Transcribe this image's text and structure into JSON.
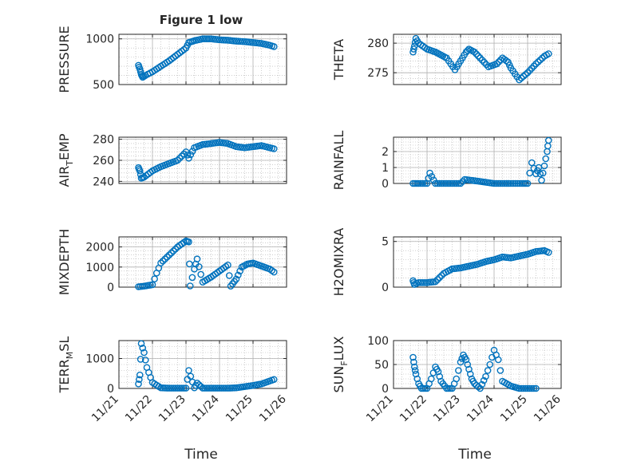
{
  "colors": {
    "marker": "#0072BD",
    "axis": "#262626",
    "grid": "#b0b0b0",
    "background": "#ffffff"
  },
  "chart_data": [
    {
      "type": "scatter",
      "title": "Figure 1 low",
      "ylabel": "PRESSURE",
      "yticks": [
        500,
        1000
      ],
      "ylim": [
        500,
        1050
      ],
      "x": [
        "11/21 14:00",
        "11/21 15:00",
        "11/21 16:00",
        "11/21 17:00",
        "11/21 19:00",
        "11/22 00:00",
        "11/22 06:00",
        "11/22 12:00",
        "11/22 18:00",
        "11/23 00:00",
        "11/23 02:00",
        "11/23 06:00",
        "11/23 12:00",
        "11/23 18:00",
        "11/24 00:00",
        "11/24 06:00",
        "11/24 12:00",
        "11/24 18:00",
        "11/25 00:00",
        "11/25 06:00",
        "11/25 12:00",
        "11/25 15:00"
      ],
      "y": [
        710,
        670,
        610,
        580,
        600,
        640,
        700,
        760,
        830,
        900,
        960,
        980,
        1000,
        1000,
        990,
        985,
        975,
        970,
        960,
        950,
        930,
        915
      ]
    },
    {
      "type": "scatter",
      "ylabel": "THETA",
      "yticks": [
        275,
        280
      ],
      "ylim": [
        273,
        281.5
      ],
      "x": [
        "11/21 14:00",
        "11/21 15:00",
        "11/21 16:00",
        "11/21 18:00",
        "11/22 00:00",
        "11/22 06:00",
        "11/22 10:00",
        "11/22 14:00",
        "11/22 20:00",
        "11/23 00:00",
        "11/23 04:00",
        "11/23 06:00",
        "11/23 10:00",
        "11/23 14:00",
        "11/23 20:00",
        "11/24 02:00",
        "11/24 06:00",
        "11/24 10:00",
        "11/24 12:00",
        "11/24 18:00",
        "11/25 00:00",
        "11/25 06:00",
        "11/25 12:00",
        "11/25 15:00"
      ],
      "y": [
        278.5,
        279.5,
        280.8,
        280,
        279,
        278.5,
        278,
        277.5,
        275.5,
        277,
        278.5,
        279,
        278.5,
        277.5,
        276,
        276.5,
        277.5,
        276.8,
        275.8,
        273.8,
        275,
        276.5,
        277.8,
        278.2
      ]
    },
    {
      "type": "scatter",
      "ylabel": "AIR_TEMP",
      "yticks": [
        240,
        260,
        280
      ],
      "ylim": [
        238,
        282
      ],
      "x": [
        "11/21 14:00",
        "11/21 15:00",
        "11/21 16:00",
        "11/21 18:00",
        "11/22 00:00",
        "11/22 06:00",
        "11/22 12:00",
        "11/22 18:00",
        "11/23 00:00",
        "11/23 02:00",
        "11/23 06:00",
        "11/23 12:00",
        "11/23 18:00",
        "11/24 00:00",
        "11/24 06:00",
        "11/24 12:00",
        "11/24 18:00",
        "11/25 00:00",
        "11/25 06:00",
        "11/25 12:00",
        "11/25 15:00"
      ],
      "y": [
        253,
        250,
        243,
        244,
        250,
        254,
        257,
        260,
        268,
        262,
        272,
        275,
        276,
        277,
        276,
        273,
        272,
        273,
        274,
        272,
        271
      ]
    },
    {
      "type": "scatter",
      "ylabel": "RAINFALL",
      "yticks": [
        0,
        1,
        2
      ],
      "ylim": [
        0,
        2.9
      ],
      "x": [
        "11/21 14:00",
        "11/21 18:00",
        "11/22 00:00",
        "11/22 02:00",
        "11/22 06:00",
        "11/22 12:00",
        "11/23 00:00",
        "11/23 03:00",
        "11/23 12:00",
        "11/24 00:00",
        "11/24 12:00",
        "11/24 20:00",
        "11/25 00:00",
        "11/25 03:00",
        "11/25 06:00",
        "11/25 08:00",
        "11/25 10:00",
        "11/25 12:00",
        "11/25 14:00",
        "11/25 15:00"
      ],
      "y": [
        0,
        0,
        0,
        0.65,
        0,
        0,
        0,
        0.25,
        0.15,
        0,
        0,
        0,
        0,
        1.3,
        0.6,
        1.0,
        0.2,
        1.1,
        2.0,
        2.7
      ]
    },
    {
      "type": "scatter",
      "ylabel": "MIXDEPTH",
      "yticks": [
        0,
        1000,
        2000
      ],
      "ylim": [
        0,
        2500
      ],
      "x": [
        "11/21 14:00",
        "11/21 18:00",
        "11/22 00:00",
        "11/22 03:00",
        "11/22 06:00",
        "11/22 12:00",
        "11/22 18:00",
        "11/23 00:00",
        "11/23 02:00",
        "11/23 03:00",
        "11/23 06:00",
        "11/23 08:00",
        "11/23 12:00",
        "11/23 18:00",
        "11/24 00:00",
        "11/24 06:00",
        "11/24 08:00",
        "11/24 12:00",
        "11/24 16:00",
        "11/24 20:00",
        "11/25 00:00",
        "11/25 06:00",
        "11/25 12:00",
        "11/25 15:00"
      ],
      "y": [
        20,
        50,
        120,
        700,
        1200,
        1600,
        2000,
        2300,
        2250,
        60,
        900,
        1400,
        250,
        500,
        800,
        1100,
        50,
        400,
        1000,
        1150,
        1200,
        1050,
        900,
        750
      ]
    },
    {
      "type": "scatter",
      "ylabel": "H2OMIXRA",
      "yticks": [
        0,
        5
      ],
      "ylim": [
        0,
        5.5
      ],
      "x": [
        "11/21 14:00",
        "11/21 15:00",
        "11/21 18:00",
        "11/22 00:00",
        "11/22 06:00",
        "11/22 12:00",
        "11/22 18:00",
        "11/23 00:00",
        "11/23 06:00",
        "11/23 12:00",
        "11/23 18:00",
        "11/24 00:00",
        "11/24 06:00",
        "11/24 12:00",
        "11/24 18:00",
        "11/25 00:00",
        "11/25 06:00",
        "11/25 12:00",
        "11/25 15:00"
      ],
      "y": [
        0.7,
        0.3,
        0.5,
        0.5,
        0.6,
        1.5,
        2.0,
        2.1,
        2.3,
        2.5,
        2.8,
        3.0,
        3.3,
        3.2,
        3.4,
        3.6,
        3.9,
        4.0,
        3.8
      ]
    },
    {
      "type": "scatter",
      "ylabel": "TERR_MSL",
      "yticks": [
        0,
        1000
      ],
      "ylim": [
        0,
        1600
      ],
      "x": [
        "11/21 14:00",
        "11/21 15:00",
        "11/21 16:00",
        "11/21 18:00",
        "11/21 20:00",
        "11/22 00:00",
        "11/22 06:00",
        "11/22 12:00",
        "11/22 18:00",
        "11/23 00:00",
        "11/23 02:00",
        "11/23 06:00",
        "11/23 08:00",
        "11/23 12:00",
        "11/24 00:00",
        "11/24 06:00",
        "11/24 12:00",
        "11/24 18:00",
        "11/25 00:00",
        "11/25 06:00",
        "11/25 12:00",
        "11/25 15:00"
      ],
      "y": [
        150,
        450,
        1500,
        1200,
        700,
        200,
        20,
        10,
        10,
        10,
        600,
        20,
        180,
        10,
        10,
        10,
        20,
        60,
        100,
        150,
        250,
        300
      ]
    },
    {
      "type": "scatter",
      "ylabel": "SUN_FLUX",
      "yticks": [
        0,
        50,
        100
      ],
      "ylim": [
        0,
        100
      ],
      "x": [
        "11/21 14:00",
        "11/21 15:00",
        "11/21 16:00",
        "11/21 18:00",
        "11/21 20:00",
        "11/22 00:00",
        "11/22 03:00",
        "11/22 06:00",
        "11/22 08:00",
        "11/22 10:00",
        "11/22 14:00",
        "11/22 18:00",
        "11/22 21:00",
        "11/23 00:00",
        "11/23 02:00",
        "11/23 04:00",
        "11/23 06:00",
        "11/23 08:00",
        "11/23 10:00",
        "11/23 14:00",
        "11/23 18:00",
        "11/23 21:00",
        "11/24 00:00",
        "11/24 03:00",
        "11/24 06:00",
        "11/24 12:00",
        "11/24 18:00",
        "11/25 00:00",
        "11/25 06:00"
      ],
      "y": [
        65,
        45,
        30,
        10,
        0,
        0,
        20,
        45,
        35,
        15,
        0,
        0,
        20,
        55,
        70,
        60,
        40,
        20,
        10,
        0,
        25,
        50,
        80,
        60,
        15,
        5,
        0,
        0,
        0
      ]
    }
  ],
  "xaxis": {
    "tick_labels": [
      "11/21",
      "11/22",
      "11/23",
      "11/24",
      "11/25",
      "11/26"
    ],
    "label": "Time"
  }
}
